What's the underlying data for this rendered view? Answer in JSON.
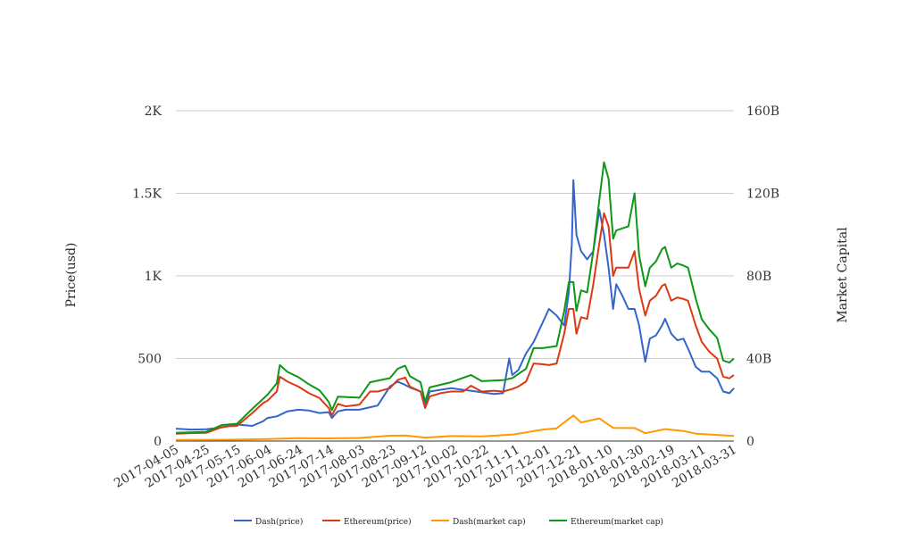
{
  "chart_data": {
    "type": "line",
    "title": "",
    "ylabel_left": "Price(usd)",
    "ylabel_right": "Market Capital",
    "ylim_left": [
      0,
      2000
    ],
    "ylim_right": [
      0,
      160000000000
    ],
    "yticks_left": [
      "0",
      "500",
      "1K",
      "1.5K",
      "2K"
    ],
    "yticks_right": [
      "0",
      "40B",
      "80B",
      "120B",
      "160B"
    ],
    "xtick_labels": [
      "2017-04-05",
      "2017-04-25",
      "2017-05-15",
      "2017-06-04",
      "2017-06-24",
      "2017-07-14",
      "2017-08-03",
      "2017-08-23",
      "2017-09-12",
      "2017-10-02",
      "2017-10-22",
      "2017-11-11",
      "2017-12-01",
      "2017-12-21",
      "2018-01-10",
      "2018-01-30",
      "2018-02-19",
      "2018-03-11",
      "2018-03-31"
    ],
    "x_start": "2017-04-05",
    "x_end": "2018-04-05",
    "grid": true,
    "legend_position": "bottom",
    "series": [
      {
        "name": "Dash(price)",
        "axis": "left",
        "color": "#3366cc",
        "points": [
          [
            "2017-04-05",
            75
          ],
          [
            "2017-04-15",
            70
          ],
          [
            "2017-04-25",
            72
          ],
          [
            "2017-05-05",
            82
          ],
          [
            "2017-05-10",
            95
          ],
          [
            "2017-05-15",
            100
          ],
          [
            "2017-05-25",
            92
          ],
          [
            "2017-06-01",
            120
          ],
          [
            "2017-06-04",
            140
          ],
          [
            "2017-06-10",
            150
          ],
          [
            "2017-06-17",
            180
          ],
          [
            "2017-06-24",
            190
          ],
          [
            "2017-07-01",
            185
          ],
          [
            "2017-07-08",
            170
          ],
          [
            "2017-07-14",
            175
          ],
          [
            "2017-07-16",
            140
          ],
          [
            "2017-07-20",
            180
          ],
          [
            "2017-07-25",
            190
          ],
          [
            "2017-08-03",
            190
          ],
          [
            "2017-08-10",
            205
          ],
          [
            "2017-08-15",
            215
          ],
          [
            "2017-08-23",
            330
          ],
          [
            "2017-08-28",
            360
          ],
          [
            "2017-09-02",
            340
          ],
          [
            "2017-09-05",
            325
          ],
          [
            "2017-09-12",
            300
          ],
          [
            "2017-09-15",
            220
          ],
          [
            "2017-09-18",
            300
          ],
          [
            "2017-09-25",
            310
          ],
          [
            "2017-10-02",
            320
          ],
          [
            "2017-10-10",
            310
          ],
          [
            "2017-10-15",
            305
          ],
          [
            "2017-10-22",
            295
          ],
          [
            "2017-10-30",
            285
          ],
          [
            "2017-11-05",
            290
          ],
          [
            "2017-11-09",
            500
          ],
          [
            "2017-11-11",
            400
          ],
          [
            "2017-11-15",
            430
          ],
          [
            "2017-11-20",
            530
          ],
          [
            "2017-11-25",
            600
          ],
          [
            "2017-12-01",
            720
          ],
          [
            "2017-12-05",
            800
          ],
          [
            "2017-12-10",
            760
          ],
          [
            "2017-12-15",
            700
          ],
          [
            "2017-12-18",
            900
          ],
          [
            "2017-12-20",
            1200
          ],
          [
            "2017-12-21",
            1580
          ],
          [
            "2017-12-23",
            1250
          ],
          [
            "2017-12-26",
            1150
          ],
          [
            "2017-12-30",
            1100
          ],
          [
            "2018-01-03",
            1150
          ],
          [
            "2018-01-07",
            1400
          ],
          [
            "2018-01-10",
            1250
          ],
          [
            "2018-01-13",
            1050
          ],
          [
            "2018-01-16",
            800
          ],
          [
            "2018-01-18",
            950
          ],
          [
            "2018-01-22",
            880
          ],
          [
            "2018-01-26",
            800
          ],
          [
            "2018-01-30",
            800
          ],
          [
            "2018-02-02",
            700
          ],
          [
            "2018-02-06",
            480
          ],
          [
            "2018-02-09",
            620
          ],
          [
            "2018-02-13",
            640
          ],
          [
            "2018-02-17",
            700
          ],
          [
            "2018-02-19",
            740
          ],
          [
            "2018-02-23",
            650
          ],
          [
            "2018-02-27",
            610
          ],
          [
            "2018-03-03",
            620
          ],
          [
            "2018-03-06",
            560
          ],
          [
            "2018-03-11",
            450
          ],
          [
            "2018-03-15",
            420
          ],
          [
            "2018-03-20",
            420
          ],
          [
            "2018-03-25",
            380
          ],
          [
            "2018-03-29",
            300
          ],
          [
            "2018-04-02",
            290
          ],
          [
            "2018-04-05",
            320
          ]
        ]
      },
      {
        "name": "Ethereum(price)",
        "axis": "left",
        "color": "#dc3912",
        "points": [
          [
            "2017-04-05",
            45
          ],
          [
            "2017-04-15",
            48
          ],
          [
            "2017-04-25",
            50
          ],
          [
            "2017-05-05",
            85
          ],
          [
            "2017-05-10",
            90
          ],
          [
            "2017-05-15",
            92
          ],
          [
            "2017-05-25",
            170
          ],
          [
            "2017-06-01",
            230
          ],
          [
            "2017-06-04",
            245
          ],
          [
            "2017-06-10",
            300
          ],
          [
            "2017-06-12",
            390
          ],
          [
            "2017-06-17",
            360
          ],
          [
            "2017-06-24",
            330
          ],
          [
            "2017-07-01",
            290
          ],
          [
            "2017-07-08",
            260
          ],
          [
            "2017-07-14",
            200
          ],
          [
            "2017-07-16",
            155
          ],
          [
            "2017-07-20",
            225
          ],
          [
            "2017-07-25",
            210
          ],
          [
            "2017-08-03",
            220
          ],
          [
            "2017-08-10",
            300
          ],
          [
            "2017-08-15",
            300
          ],
          [
            "2017-08-23",
            320
          ],
          [
            "2017-08-28",
            370
          ],
          [
            "2017-09-02",
            385
          ],
          [
            "2017-09-05",
            330
          ],
          [
            "2017-09-12",
            300
          ],
          [
            "2017-09-15",
            200
          ],
          [
            "2017-09-18",
            270
          ],
          [
            "2017-09-25",
            290
          ],
          [
            "2017-10-02",
            300
          ],
          [
            "2017-10-10",
            300
          ],
          [
            "2017-10-15",
            335
          ],
          [
            "2017-10-22",
            300
          ],
          [
            "2017-10-30",
            305
          ],
          [
            "2017-11-05",
            300
          ],
          [
            "2017-11-11",
            315
          ],
          [
            "2017-11-15",
            330
          ],
          [
            "2017-11-20",
            360
          ],
          [
            "2017-11-25",
            470
          ],
          [
            "2017-12-01",
            465
          ],
          [
            "2017-12-05",
            460
          ],
          [
            "2017-12-10",
            470
          ],
          [
            "2017-12-15",
            650
          ],
          [
            "2017-12-18",
            800
          ],
          [
            "2017-12-21",
            800
          ],
          [
            "2017-12-23",
            650
          ],
          [
            "2017-12-26",
            750
          ],
          [
            "2017-12-30",
            740
          ],
          [
            "2018-01-03",
            950
          ],
          [
            "2018-01-07",
            1200
          ],
          [
            "2018-01-10",
            1380
          ],
          [
            "2018-01-13",
            1300
          ],
          [
            "2018-01-16",
            1000
          ],
          [
            "2018-01-18",
            1050
          ],
          [
            "2018-01-22",
            1050
          ],
          [
            "2018-01-26",
            1050
          ],
          [
            "2018-01-30",
            1150
          ],
          [
            "2018-02-02",
            920
          ],
          [
            "2018-02-06",
            760
          ],
          [
            "2018-02-09",
            850
          ],
          [
            "2018-02-13",
            880
          ],
          [
            "2018-02-17",
            940
          ],
          [
            "2018-02-19",
            950
          ],
          [
            "2018-02-23",
            850
          ],
          [
            "2018-02-27",
            870
          ],
          [
            "2018-03-03",
            860
          ],
          [
            "2018-03-06",
            850
          ],
          [
            "2018-03-11",
            700
          ],
          [
            "2018-03-15",
            600
          ],
          [
            "2018-03-20",
            540
          ],
          [
            "2018-03-25",
            500
          ],
          [
            "2018-03-29",
            390
          ],
          [
            "2018-04-02",
            380
          ],
          [
            "2018-04-05",
            400
          ]
        ]
      },
      {
        "name": "Dash(market cap)",
        "axis": "right",
        "color": "#ff9900",
        "points": [
          [
            "2017-04-05",
            540000000
          ],
          [
            "2017-05-15",
            700000000
          ],
          [
            "2017-06-04",
            1000000000
          ],
          [
            "2017-06-24",
            1400000000
          ],
          [
            "2017-07-14",
            1300000000
          ],
          [
            "2017-08-03",
            1500000000
          ],
          [
            "2017-08-23",
            2600000000
          ],
          [
            "2017-09-02",
            2700000000
          ],
          [
            "2017-09-15",
            1700000000
          ],
          [
            "2017-10-02",
            2400000000
          ],
          [
            "2017-10-22",
            2300000000
          ],
          [
            "2017-11-11",
            3100000000
          ],
          [
            "2017-12-01",
            5600000000
          ],
          [
            "2017-12-10",
            6200000000
          ],
          [
            "2017-12-21",
            12400000000
          ],
          [
            "2017-12-26",
            9000000000
          ],
          [
            "2018-01-07",
            11000000000
          ],
          [
            "2018-01-16",
            6400000000
          ],
          [
            "2018-01-30",
            6300000000
          ],
          [
            "2018-02-06",
            3800000000
          ],
          [
            "2018-02-19",
            5800000000
          ],
          [
            "2018-03-03",
            4900000000
          ],
          [
            "2018-03-11",
            3600000000
          ],
          [
            "2018-03-25",
            3000000000
          ],
          [
            "2018-04-05",
            2500000000
          ]
        ]
      },
      {
        "name": "Ethereum(market cap)",
        "axis": "right",
        "color": "#109618",
        "points": [
          [
            "2017-04-05",
            4000000000
          ],
          [
            "2017-04-25",
            4500000000
          ],
          [
            "2017-05-05",
            7800000000
          ],
          [
            "2017-05-15",
            8400000000
          ],
          [
            "2017-05-25",
            15600000000
          ],
          [
            "2017-06-04",
            22500000000
          ],
          [
            "2017-06-10",
            28000000000
          ],
          [
            "2017-06-12",
            36800000000
          ],
          [
            "2017-06-17",
            33500000000
          ],
          [
            "2017-06-24",
            31000000000
          ],
          [
            "2017-07-01",
            27500000000
          ],
          [
            "2017-07-08",
            24500000000
          ],
          [
            "2017-07-14",
            19000000000
          ],
          [
            "2017-07-16",
            15000000000
          ],
          [
            "2017-07-20",
            21500000000
          ],
          [
            "2017-08-03",
            21000000000
          ],
          [
            "2017-08-10",
            28500000000
          ],
          [
            "2017-08-23",
            30500000000
          ],
          [
            "2017-08-28",
            35000000000
          ],
          [
            "2017-09-02",
            36500000000
          ],
          [
            "2017-09-05",
            31500000000
          ],
          [
            "2017-09-12",
            28500000000
          ],
          [
            "2017-09-15",
            19000000000
          ],
          [
            "2017-09-18",
            26000000000
          ],
          [
            "2017-10-02",
            28500000000
          ],
          [
            "2017-10-15",
            32000000000
          ],
          [
            "2017-10-22",
            29000000000
          ],
          [
            "2017-11-05",
            29500000000
          ],
          [
            "2017-11-11",
            30500000000
          ],
          [
            "2017-11-20",
            35000000000
          ],
          [
            "2017-11-25",
            45000000000
          ],
          [
            "2017-12-01",
            45000000000
          ],
          [
            "2017-12-10",
            46000000000
          ],
          [
            "2017-12-15",
            63000000000
          ],
          [
            "2017-12-18",
            77000000000
          ],
          [
            "2017-12-21",
            77000000000
          ],
          [
            "2017-12-23",
            63000000000
          ],
          [
            "2017-12-26",
            73000000000
          ],
          [
            "2017-12-30",
            72000000000
          ],
          [
            "2018-01-03",
            92000000000
          ],
          [
            "2018-01-07",
            117000000000
          ],
          [
            "2018-01-10",
            135000000000
          ],
          [
            "2018-01-13",
            127000000000
          ],
          [
            "2018-01-16",
            98000000000
          ],
          [
            "2018-01-18",
            102000000000
          ],
          [
            "2018-01-22",
            103000000000
          ],
          [
            "2018-01-26",
            104000000000
          ],
          [
            "2018-01-30",
            120000000000
          ],
          [
            "2018-02-02",
            90000000000
          ],
          [
            "2018-02-06",
            75000000000
          ],
          [
            "2018-02-09",
            84000000000
          ],
          [
            "2018-02-13",
            87000000000
          ],
          [
            "2018-02-17",
            93000000000
          ],
          [
            "2018-02-19",
            94000000000
          ],
          [
            "2018-02-23",
            84000000000
          ],
          [
            "2018-02-27",
            86000000000
          ],
          [
            "2018-03-03",
            85000000000
          ],
          [
            "2018-03-06",
            84000000000
          ],
          [
            "2018-03-11",
            69000000000
          ],
          [
            "2018-03-15",
            59000000000
          ],
          [
            "2018-03-20",
            54000000000
          ],
          [
            "2018-03-25",
            50000000000
          ],
          [
            "2018-03-29",
            39000000000
          ],
          [
            "2018-04-02",
            38000000000
          ],
          [
            "2018-04-05",
            40000000000
          ]
        ]
      }
    ]
  }
}
